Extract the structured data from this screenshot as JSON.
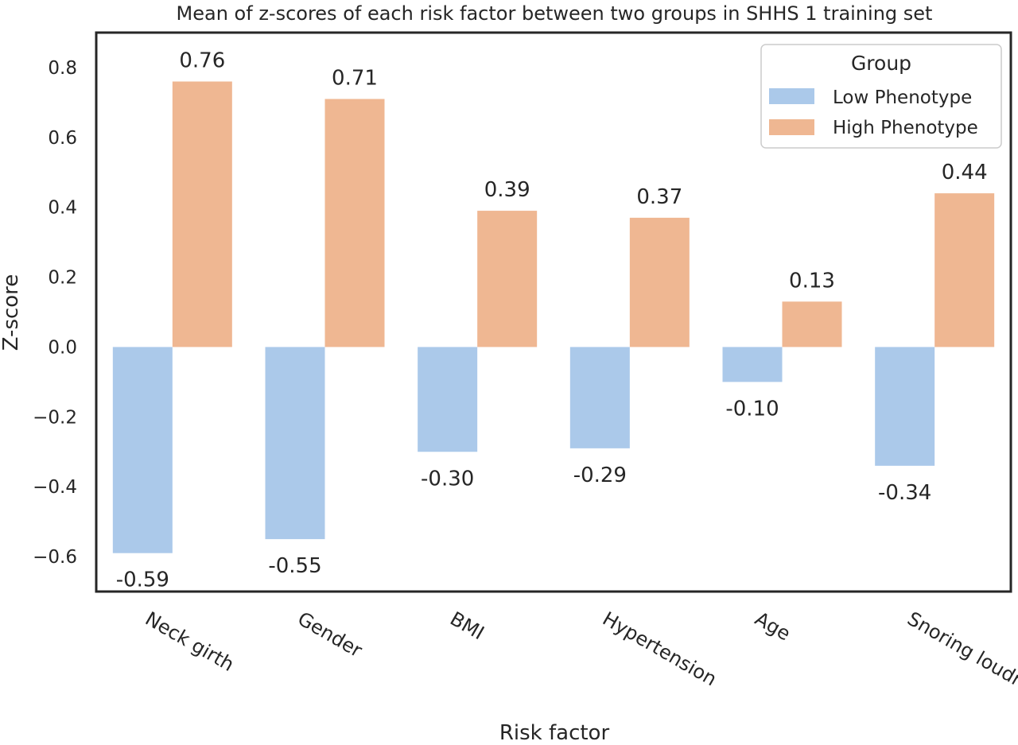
{
  "chart_data": {
    "type": "bar",
    "title": "Mean of z-scores of each risk factor between two groups in SHHS 1 training set",
    "xlabel": "Risk factor",
    "ylabel": "Z-score",
    "categories": [
      "Neck girth",
      "Gender",
      "BMI",
      "Hypertension",
      "Age",
      "Snoring loudness"
    ],
    "series": [
      {
        "name": "Low Phenotype",
        "color": "#abc9ea",
        "values": [
          -0.59,
          -0.55,
          -0.3,
          -0.29,
          -0.1,
          -0.34
        ],
        "labels": [
          "-0.59",
          "-0.55",
          "-0.30",
          "-0.29",
          "-0.10",
          "-0.34"
        ]
      },
      {
        "name": "High Phenotype",
        "color": "#efb792",
        "values": [
          0.76,
          0.71,
          0.39,
          0.37,
          0.13,
          0.44
        ],
        "labels": [
          "0.76",
          "0.71",
          "0.39",
          "0.37",
          "0.13",
          "0.44"
        ]
      }
    ],
    "ylim": [
      -0.7,
      0.9
    ],
    "yticks": [
      -0.6,
      -0.4,
      -0.2,
      0.0,
      0.2,
      0.4,
      0.6,
      0.8
    ],
    "ytick_labels": [
      "−0.6",
      "−0.4",
      "−0.2",
      "0.0",
      "0.2",
      "0.4",
      "0.6",
      "0.8"
    ],
    "legend": {
      "title": "Group",
      "placement": "top-right"
    },
    "grid": false
  }
}
